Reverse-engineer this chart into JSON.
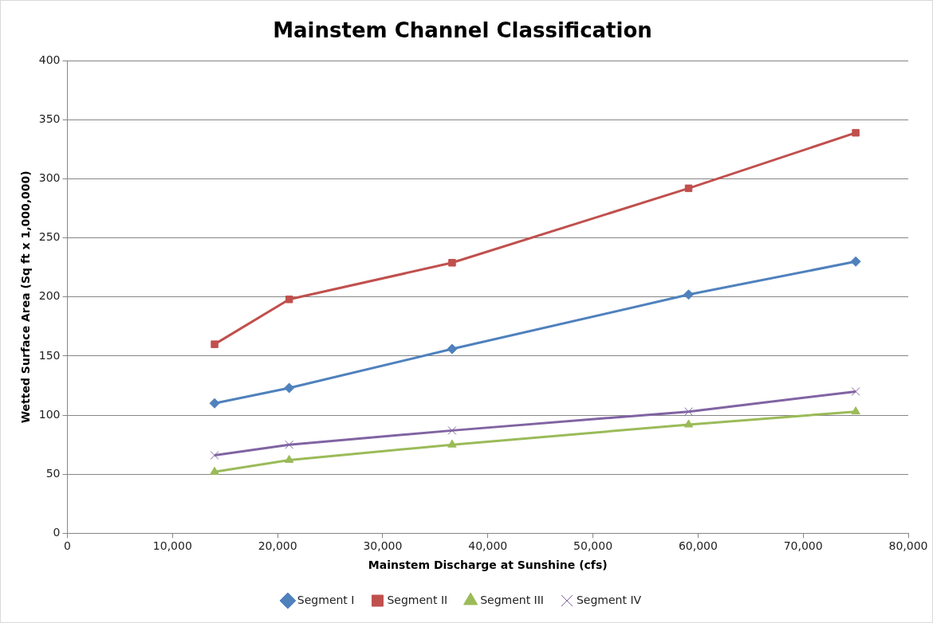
{
  "chart_data": {
    "type": "line",
    "title": "Mainstem Channel Classification",
    "xlabel": "Mainstem Discharge at Sunshine (cfs)",
    "ylabel": "Wetted Surface Area (Sq ft x 1,000,000)",
    "x": [
      14000,
      21100,
      36600,
      59100,
      75000
    ],
    "series": [
      {
        "name": "Segment I",
        "color": "#4f81bd",
        "marker": "diamond",
        "values": [
          110,
          123,
          156,
          202,
          230
        ]
      },
      {
        "name": "Segment II",
        "color": "#c0504d",
        "marker": "square",
        "values": [
          160,
          198,
          229,
          292,
          339
        ]
      },
      {
        "name": "Segment III",
        "color": "#9bbb59",
        "marker": "triangle",
        "values": [
          52,
          62,
          75,
          92,
          103
        ]
      },
      {
        "name": "Segment IV",
        "color": "#8064a2",
        "marker": "cross",
        "values": [
          66,
          75,
          87,
          103,
          120
        ]
      }
    ],
    "xlim": [
      0,
      80000
    ],
    "xticks": [
      0,
      {
        "value": 10000,
        "label": "10,000"
      },
      {
        "value": 20000,
        "label": "20,000"
      },
      {
        "value": 30000,
        "label": "30,000"
      },
      {
        "value": 40000,
        "label": "40,000"
      },
      {
        "value": 50000,
        "label": "50,000"
      },
      {
        "value": 60000,
        "label": "60,000"
      },
      {
        "value": 70000,
        "label": "70,000"
      },
      {
        "value": 80000,
        "label": "80,000"
      }
    ],
    "ylim": [
      0,
      400
    ],
    "yticks": [
      0,
      50,
      100,
      150,
      200,
      250,
      300,
      350,
      400
    ],
    "grid": "y",
    "legend": "bottom"
  }
}
